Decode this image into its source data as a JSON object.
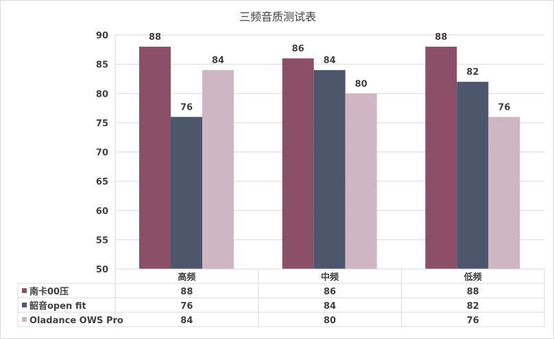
{
  "chart_data": {
    "type": "bar",
    "title": "三频音质测试表",
    "categories": [
      "高频",
      "中频",
      "低频"
    ],
    "series": [
      {
        "name": "南卡00压",
        "values": [
          88,
          86,
          88
        ],
        "color": "#8b4f68"
      },
      {
        "name": "韶音open fit",
        "values": [
          76,
          84,
          82
        ],
        "color": "#4d576b"
      },
      {
        "name": "Oladance OWS Pro",
        "values": [
          84,
          80,
          76
        ],
        "color": "#cfb6c2"
      }
    ],
    "ylim": [
      50,
      90
    ],
    "yticks": [
      50,
      55,
      60,
      65,
      70,
      75,
      80,
      85,
      90
    ],
    "grid": true,
    "legend": "data-table-below",
    "xlabel": "",
    "ylabel": ""
  }
}
